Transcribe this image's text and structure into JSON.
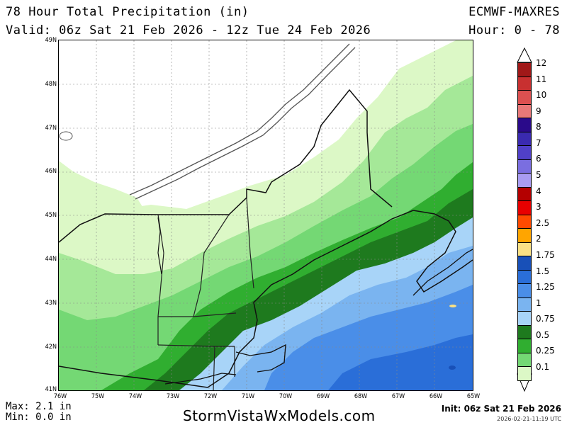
{
  "header": {
    "title": "78 Hour Total Precipitation (in)",
    "valid": "Valid: 06z Sat 21 Feb 2026 - 12z Tue 24 Feb 2026",
    "model": "ECMWF-MAXRES",
    "hour_range": "Hour: 0 - 78"
  },
  "map": {
    "lat_labels": [
      "49N",
      "48N",
      "47N",
      "46N",
      "45N",
      "44N",
      "43N",
      "42N",
      "41N"
    ],
    "lon_labels": [
      "76W",
      "75W",
      "74W",
      "73W",
      "72W",
      "71W",
      "70W",
      "69W",
      "68W",
      "67W",
      "66W",
      "65W"
    ],
    "region": "Northeast US / New England",
    "features": [
      "coastlines",
      "state borders",
      "country border",
      "precipitation shading"
    ]
  },
  "legend": {
    "labels": [
      "12",
      "11",
      "10",
      "9",
      "8",
      "7",
      "6",
      "5",
      "4",
      "3",
      "2.5",
      "2",
      "1.75",
      "1.5",
      "1.25",
      "1",
      "0.75",
      "0.5",
      "0.25",
      "0.1"
    ],
    "colors": [
      "#a01818",
      "#c83030",
      "#dc5050",
      "#e87878",
      "#2a0a8a",
      "#3a2ab0",
      "#5040c8",
      "#7a6ee0",
      "#a99cf2",
      "#b40000",
      "#e80000",
      "#ff4a00",
      "#ffa500",
      "#fae184",
      "#1850b8",
      "#2a6ed8",
      "#4a8ee8",
      "#7ab4f0",
      "#a8d4f8",
      "#1e7a1e",
      "#30ae30",
      "#74d874",
      "#dcf8c6"
    ],
    "bands": [
      {
        "label": "12",
        "color": "#a01818"
      },
      {
        "label": "11",
        "color": "#c83030"
      },
      {
        "label": "10",
        "color": "#dc5050"
      },
      {
        "label": "9",
        "color": "#e87878"
      },
      {
        "label": "8",
        "color": "#2a0a8a"
      },
      {
        "label": "7",
        "color": "#3a2ab0"
      },
      {
        "label": "6",
        "color": "#5040c8"
      },
      {
        "label": "5",
        "color": "#7a6ee0"
      },
      {
        "label": "4",
        "color": "#a99cf2"
      },
      {
        "label": "3",
        "color": "#b40000"
      },
      {
        "label": "2.5",
        "color": "#e80000"
      },
      {
        "label": "2",
        "color": "#ff4a00"
      },
      {
        "label": "1.75",
        "color": "#ffa500"
      },
      {
        "label": "1.5",
        "color": "#fae184"
      },
      {
        "label": "1.25",
        "color": "#1850b8"
      },
      {
        "label": "1",
        "color": "#2a6ed8"
      },
      {
        "label": "0.75",
        "color": "#4a8ee8"
      },
      {
        "label": "0.5",
        "color": "#7ab4f0"
      },
      {
        "label": "0.25",
        "color": "#a8d4f8"
      },
      {
        "label": "0.1",
        "color": "#1e7a1e"
      }
    ]
  },
  "stats": {
    "max": "Max: 2.1 in",
    "min": "Min: 0.0 in"
  },
  "footer": {
    "site": "StormVistaWxModels.com",
    "init": "Init: 06z Sat 21 Feb 2026",
    "timestamp": "2026-02-21-11:19 UTC"
  }
}
